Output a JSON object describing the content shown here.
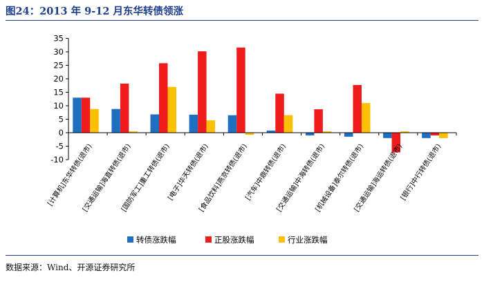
{
  "title": "图24：2013 年 9-12 月东华转债领涨",
  "source": "数据来源：Wind、开源证券研究所",
  "chart_data": {
    "type": "bar",
    "title": "图24：2013 年 9-12 月东华转债领涨",
    "xlabel": "",
    "ylabel": "",
    "ylim": [
      -10,
      35
    ],
    "yticks": [
      -10,
      -5,
      0,
      5,
      10,
      15,
      20,
      25,
      30,
      35
    ],
    "grid": false,
    "legend_position": "bottom",
    "categories": [
      "[计算机]东华转债(退市)",
      "[交通运输]海直转债(退市)",
      "[国防军工]重工转债(退市)",
      "[电子]华天转债(退市)",
      "[食品饮料]燕京转债(退市)",
      "[汽车]中鼎转债(退市)",
      "[交通运输]中海转债(退市)",
      "[机械设备]泰尔转债(退市)",
      "[交通运输]海运转债(退市)",
      "[银行]中行转债(退市)"
    ],
    "series": [
      {
        "name": "转债涨跌幅",
        "color": "#1f6fc0",
        "values": [
          13.0,
          8.8,
          6.8,
          6.7,
          6.5,
          0.8,
          -1.0,
          -1.5,
          -2.0,
          -2.0
        ]
      },
      {
        "name": "正股涨跌幅",
        "color": "#ee1c1c",
        "values": [
          13.0,
          18.2,
          25.8,
          30.2,
          31.6,
          14.5,
          8.7,
          17.7,
          -7.3,
          -1.0
        ]
      },
      {
        "name": "行业涨跌幅",
        "color": "#ffc000",
        "values": [
          8.8,
          0.5,
          17.0,
          4.6,
          -0.8,
          6.5,
          0.5,
          11.0,
          0.5,
          -2.0
        ]
      }
    ]
  }
}
